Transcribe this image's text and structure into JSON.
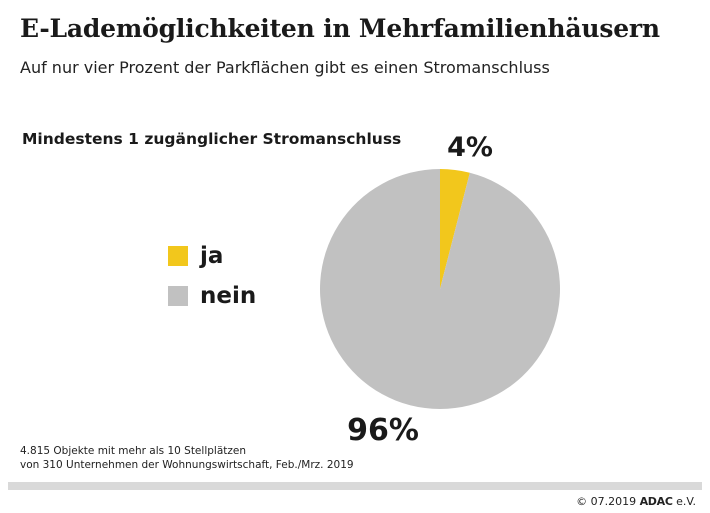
{
  "header": {
    "title": "E-Lademöglichkeiten in Mehrfamilienhäusern",
    "subtitle": "Auf nur vier Prozent der Parkflächen gibt es einen Stromanschluss"
  },
  "chart_data": {
    "type": "pie",
    "title": "Mindestens 1 zugänglicher Stromanschluss",
    "categories": [
      "ja",
      "nein"
    ],
    "values": [
      4,
      96
    ],
    "value_labels": [
      "4%",
      "96%"
    ],
    "colors": [
      "#F2C71C",
      "#C1C1C1"
    ],
    "legend_position": "left"
  },
  "note": {
    "line1": "4.815 Objekte mit mehr als 10 Stellplätzen",
    "line2": "von 310 Unternehmen der Wohnungswirtschaft, Feb./Mrz. 2019"
  },
  "footer": {
    "copyright": "© 07.2019",
    "brand": "ADAC",
    "brand_suffix": "e.V."
  }
}
